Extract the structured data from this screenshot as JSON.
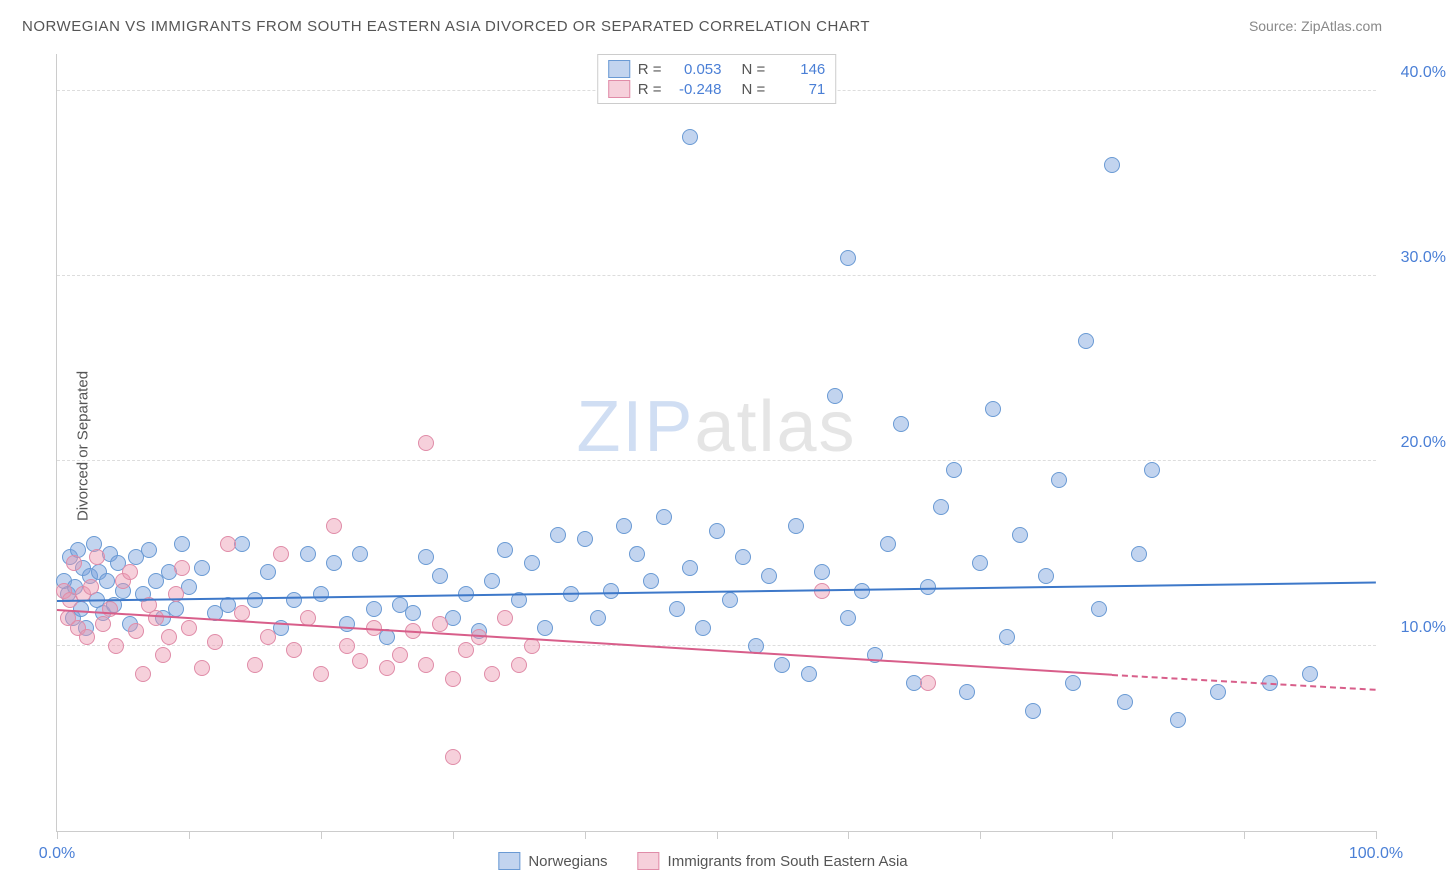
{
  "title": "NORWEGIAN VS IMMIGRANTS FROM SOUTH EASTERN ASIA DIVORCED OR SEPARATED CORRELATION CHART",
  "source": "Source: ZipAtlas.com",
  "y_axis_label": "Divorced or Separated",
  "watermark_zip": "ZIP",
  "watermark_atlas": "atlas",
  "chart": {
    "type": "scatter",
    "xlim": [
      0,
      100
    ],
    "ylim": [
      0,
      42
    ],
    "x_tick_positions": [
      0,
      10,
      20,
      30,
      40,
      50,
      60,
      70,
      80,
      90,
      100
    ],
    "x_tick_labels": {
      "0": "0.0%",
      "100": "100.0%"
    },
    "y_gridlines": [
      10,
      20,
      30,
      40
    ],
    "y_tick_labels": {
      "10": "10.0%",
      "20": "20.0%",
      "30": "30.0%",
      "40": "40.0%"
    },
    "background_color": "#ffffff",
    "grid_color": "#dddddd",
    "axis_color": "#cccccc",
    "series": [
      {
        "name": "Norwegians",
        "fill_color": "rgba(120,160,220,0.45)",
        "stroke_color": "#6a9ad4",
        "marker_radius": 8,
        "trend_color": "#3d78c9",
        "trend_start": [
          0,
          12.5
        ],
        "trend_end": [
          100,
          13.5
        ],
        "R": "0.053",
        "N": "146",
        "points": [
          [
            0.5,
            13.5
          ],
          [
            0.8,
            12.8
          ],
          [
            1,
            14.8
          ],
          [
            1.2,
            11.5
          ],
          [
            1.4,
            13.2
          ],
          [
            1.6,
            15.2
          ],
          [
            1.8,
            12.0
          ],
          [
            2,
            14.2
          ],
          [
            2.2,
            11.0
          ],
          [
            2.5,
            13.8
          ],
          [
            2.8,
            15.5
          ],
          [
            3,
            12.5
          ],
          [
            3.2,
            14.0
          ],
          [
            3.5,
            11.8
          ],
          [
            3.8,
            13.5
          ],
          [
            4,
            15.0
          ],
          [
            4.3,
            12.2
          ],
          [
            4.6,
            14.5
          ],
          [
            5,
            13.0
          ],
          [
            5.5,
            11.2
          ],
          [
            6,
            14.8
          ],
          [
            6.5,
            12.8
          ],
          [
            7,
            15.2
          ],
          [
            7.5,
            13.5
          ],
          [
            8,
            11.5
          ],
          [
            8.5,
            14.0
          ],
          [
            9,
            12.0
          ],
          [
            9.5,
            15.5
          ],
          [
            10,
            13.2
          ],
          [
            11,
            14.2
          ],
          [
            12,
            11.8
          ],
          [
            13,
            12.2
          ],
          [
            14,
            15.5
          ],
          [
            15,
            12.5
          ],
          [
            16,
            14.0
          ],
          [
            17,
            11.0
          ],
          [
            18,
            12.5
          ],
          [
            19,
            15.0
          ],
          [
            20,
            12.8
          ],
          [
            21,
            14.5
          ],
          [
            22,
            11.2
          ],
          [
            23,
            15.0
          ],
          [
            24,
            12.0
          ],
          [
            25,
            10.5
          ],
          [
            26,
            12.2
          ],
          [
            27,
            11.8
          ],
          [
            28,
            14.8
          ],
          [
            29,
            13.8
          ],
          [
            30,
            11.5
          ],
          [
            31,
            12.8
          ],
          [
            32,
            10.8
          ],
          [
            33,
            13.5
          ],
          [
            34,
            15.2
          ],
          [
            35,
            12.5
          ],
          [
            36,
            14.5
          ],
          [
            37,
            11.0
          ],
          [
            38,
            16.0
          ],
          [
            39,
            12.8
          ],
          [
            40,
            15.8
          ],
          [
            41,
            11.5
          ],
          [
            42,
            13.0
          ],
          [
            43,
            16.5
          ],
          [
            44,
            15.0
          ],
          [
            45,
            13.5
          ],
          [
            46,
            17.0
          ],
          [
            47,
            12.0
          ],
          [
            48,
            14.2
          ],
          [
            48,
            37.5
          ],
          [
            49,
            11.0
          ],
          [
            50,
            16.2
          ],
          [
            51,
            12.5
          ],
          [
            52,
            14.8
          ],
          [
            53,
            10.0
          ],
          [
            54,
            13.8
          ],
          [
            55,
            9.0
          ],
          [
            56,
            16.5
          ],
          [
            57,
            8.5
          ],
          [
            58,
            14.0
          ],
          [
            59,
            23.5
          ],
          [
            60,
            11.5
          ],
          [
            60,
            31.0
          ],
          [
            61,
            13.0
          ],
          [
            62,
            9.5
          ],
          [
            63,
            15.5
          ],
          [
            64,
            22.0
          ],
          [
            65,
            8.0
          ],
          [
            66,
            13.2
          ],
          [
            67,
            17.5
          ],
          [
            68,
            19.5
          ],
          [
            69,
            7.5
          ],
          [
            70,
            14.5
          ],
          [
            71,
            22.8
          ],
          [
            72,
            10.5
          ],
          [
            73,
            16.0
          ],
          [
            74,
            6.5
          ],
          [
            75,
            13.8
          ],
          [
            76,
            19.0
          ],
          [
            77,
            8.0
          ],
          [
            78,
            26.5
          ],
          [
            79,
            12.0
          ],
          [
            80,
            36.0
          ],
          [
            81,
            7.0
          ],
          [
            82,
            15.0
          ],
          [
            83,
            19.5
          ],
          [
            85,
            6.0
          ],
          [
            88,
            7.5
          ],
          [
            92,
            8.0
          ],
          [
            95,
            8.5
          ]
        ]
      },
      {
        "name": "Immigrants from South Eastern Asia",
        "fill_color": "rgba(235,150,175,0.45)",
        "stroke_color": "#e08ca8",
        "marker_radius": 8,
        "trend_color": "#d85e8a",
        "trend_start": [
          0,
          12.0
        ],
        "trend_end": [
          80,
          8.5
        ],
        "trend_dash_end": [
          100,
          7.7
        ],
        "R": "-0.248",
        "N": "71",
        "points": [
          [
            0.5,
            13.0
          ],
          [
            0.8,
            11.5
          ],
          [
            1,
            12.5
          ],
          [
            1.3,
            14.5
          ],
          [
            1.6,
            11.0
          ],
          [
            2,
            12.8
          ],
          [
            2.3,
            10.5
          ],
          [
            2.6,
            13.2
          ],
          [
            3,
            14.8
          ],
          [
            3.5,
            11.2
          ],
          [
            4,
            12.0
          ],
          [
            4.5,
            10.0
          ],
          [
            5,
            13.5
          ],
          [
            5.5,
            14.0
          ],
          [
            6,
            10.8
          ],
          [
            6.5,
            8.5
          ],
          [
            7,
            12.2
          ],
          [
            7.5,
            11.5
          ],
          [
            8,
            9.5
          ],
          [
            8.5,
            10.5
          ],
          [
            9,
            12.8
          ],
          [
            9.5,
            14.2
          ],
          [
            10,
            11.0
          ],
          [
            11,
            8.8
          ],
          [
            12,
            10.2
          ],
          [
            13,
            15.5
          ],
          [
            14,
            11.8
          ],
          [
            15,
            9.0
          ],
          [
            16,
            10.5
          ],
          [
            17,
            15.0
          ],
          [
            18,
            9.8
          ],
          [
            19,
            11.5
          ],
          [
            20,
            8.5
          ],
          [
            21,
            16.5
          ],
          [
            22,
            10.0
          ],
          [
            23,
            9.2
          ],
          [
            24,
            11.0
          ],
          [
            25,
            8.8
          ],
          [
            26,
            9.5
          ],
          [
            27,
            10.8
          ],
          [
            28,
            9.0
          ],
          [
            28,
            21.0
          ],
          [
            29,
            11.2
          ],
          [
            30,
            8.2
          ],
          [
            30,
            4.0
          ],
          [
            31,
            9.8
          ],
          [
            32,
            10.5
          ],
          [
            33,
            8.5
          ],
          [
            34,
            11.5
          ],
          [
            35,
            9.0
          ],
          [
            36,
            10.0
          ],
          [
            58,
            13.0
          ],
          [
            66,
            8.0
          ]
        ]
      }
    ]
  },
  "legend_top": [
    {
      "swatch_fill": "rgba(120,160,220,0.45)",
      "swatch_stroke": "#6a9ad4",
      "R_label": "R =",
      "R_val": "0.053",
      "N_label": "N =",
      "N_val": "146"
    },
    {
      "swatch_fill": "rgba(235,150,175,0.45)",
      "swatch_stroke": "#e08ca8",
      "R_label": "R =",
      "R_val": "-0.248",
      "N_label": "N =",
      "N_val": "71"
    }
  ],
  "legend_bottom": [
    {
      "swatch_fill": "rgba(120,160,220,0.45)",
      "swatch_stroke": "#6a9ad4",
      "label": "Norwegians"
    },
    {
      "swatch_fill": "rgba(235,150,175,0.45)",
      "swatch_stroke": "#e08ca8",
      "label": "Immigrants from South Eastern Asia"
    }
  ]
}
